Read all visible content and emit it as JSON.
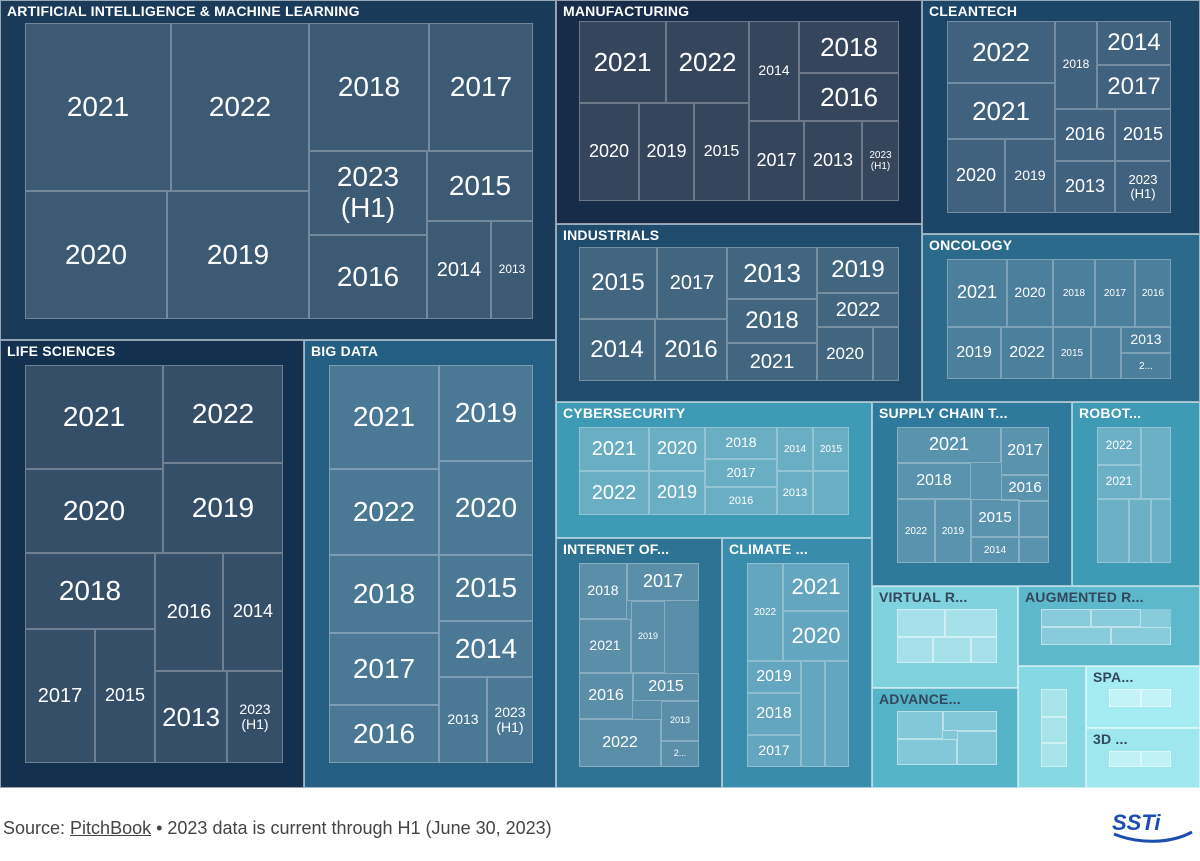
{
  "chart_data": {
    "type": "treemap",
    "categories": [
      {
        "name": "ARTIFICIAL INTELLIGENCE & MACHINE LEARNING",
        "bg": "#1a3a5a",
        "inner": "#3d5a74",
        "cells": [
          {
            "label": "2021"
          },
          {
            "label": "2022"
          },
          {
            "label": "2018"
          },
          {
            "label": "2017"
          },
          {
            "label": "2023 (H1)"
          },
          {
            "label": "2015"
          },
          {
            "label": "2020"
          },
          {
            "label": "2019"
          },
          {
            "label": "2016"
          },
          {
            "label": "2014"
          },
          {
            "label": "2013"
          }
        ]
      },
      {
        "name": "MANUFACTURING",
        "bg": "#162c48",
        "inner": "#35465c",
        "cells": [
          {
            "label": "2021"
          },
          {
            "label": "2022"
          },
          {
            "label": "2014"
          },
          {
            "label": "2018"
          },
          {
            "label": "2016"
          },
          {
            "label": "2020"
          },
          {
            "label": "2019"
          },
          {
            "label": "2015"
          },
          {
            "label": "2017"
          },
          {
            "label": "2013"
          },
          {
            "label": "2023 (H1)"
          }
        ]
      },
      {
        "name": "CLEANTECH",
        "bg": "#1c4668",
        "inner": "#41627e",
        "cells": [
          {
            "label": "2022"
          },
          {
            "label": "2018"
          },
          {
            "label": "2014"
          },
          {
            "label": "2017"
          },
          {
            "label": "2021"
          },
          {
            "label": "2016"
          },
          {
            "label": "2015"
          },
          {
            "label": "2020"
          },
          {
            "label": "2019"
          },
          {
            "label": "2013"
          },
          {
            "label": "2023 (H1)"
          }
        ]
      },
      {
        "name": "INDUSTRIALS",
        "bg": "#1f4b6c",
        "inner": "#42667f",
        "cells": [
          {
            "label": "2015"
          },
          {
            "label": "2017"
          },
          {
            "label": "2013"
          },
          {
            "label": "2019"
          },
          {
            "label": "2018"
          },
          {
            "label": "2022"
          },
          {
            "label": "2014"
          },
          {
            "label": "2016"
          },
          {
            "label": "2021"
          },
          {
            "label": "2020"
          },
          {
            "label": ""
          }
        ]
      },
      {
        "name": "ONCOLOGY",
        "bg": "#2c6a8c",
        "inner": "#4c7f9c",
        "cells": [
          {
            "label": "2021"
          },
          {
            "label": "2020"
          },
          {
            "label": "2018"
          },
          {
            "label": "2017"
          },
          {
            "label": "2016"
          },
          {
            "label": "2019"
          },
          {
            "label": "2022"
          },
          {
            "label": "2015"
          },
          {
            "label": ""
          },
          {
            "label": "2013"
          },
          {
            "label": "2..."
          }
        ]
      },
      {
        "name": "LIFE SCIENCES",
        "bg": "#14304f",
        "inner": "#364f69",
        "cells": [
          {
            "label": "2021"
          },
          {
            "label": "2022"
          },
          {
            "label": "2020"
          },
          {
            "label": "2019"
          },
          {
            "label": "2018"
          },
          {
            "label": "2016"
          },
          {
            "label": "2014"
          },
          {
            "label": "2017"
          },
          {
            "label": "2015"
          },
          {
            "label": "2013"
          },
          {
            "label": "2023 (H1)"
          }
        ]
      },
      {
        "name": "BIG DATA",
        "bg": "#245e82",
        "inner": "#4a7895",
        "cells": [
          {
            "label": "2021"
          },
          {
            "label": "2019"
          },
          {
            "label": "2022"
          },
          {
            "label": "2020"
          },
          {
            "label": "2018"
          },
          {
            "label": "2015"
          },
          {
            "label": "2017"
          },
          {
            "label": "2014"
          },
          {
            "label": "2016"
          },
          {
            "label": "2013"
          },
          {
            "label": "2023 (H1)"
          }
        ]
      },
      {
        "name": "CYBERSECURITY",
        "bg": "#3f9ab6",
        "inner": "#6aaec4",
        "cells": [
          {
            "label": "2021"
          },
          {
            "label": "2020"
          },
          {
            "label": "2018"
          },
          {
            "label": "2014"
          },
          {
            "label": "2015"
          },
          {
            "label": "2017"
          },
          {
            "label": "2022"
          },
          {
            "label": "2019"
          },
          {
            "label": "2016"
          },
          {
            "label": "2013"
          },
          {
            "label": ""
          }
        ]
      },
      {
        "name": "SUPPLY CHAIN T...",
        "bg": "#2f7a9c",
        "inner": "#5a93ad",
        "cells": [
          {
            "label": "2021"
          },
          {
            "label": "2017"
          },
          {
            "label": "2018"
          },
          {
            "label": "2016"
          },
          {
            "label": "2015"
          },
          {
            "label": "2022"
          },
          {
            "label": "2019"
          },
          {
            "label": "2014"
          },
          {
            "label": ""
          },
          {
            "label": ""
          }
        ]
      },
      {
        "name": "ROBOT...",
        "bg": "#3f9ab6",
        "inner": "#6cb0c6",
        "cells": [
          {
            "label": "2022"
          },
          {
            "label": "2021"
          },
          {
            "label": ""
          },
          {
            "label": ""
          },
          {
            "label": ""
          },
          {
            "label": ""
          }
        ]
      },
      {
        "name": "INTERNET OF...",
        "bg": "#2f7394",
        "inner": "#5a8ea9",
        "cells": [
          {
            "label": "2018"
          },
          {
            "label": "2017"
          },
          {
            "label": "2021"
          },
          {
            "label": "2019"
          },
          {
            "label": "2016"
          },
          {
            "label": "2015"
          },
          {
            "label": "2022"
          },
          {
            "label": "2013"
          },
          {
            "label": "2..."
          }
        ]
      },
      {
        "name": "CLIMATE ...",
        "bg": "#3a8cac",
        "inner": "#64a5bf",
        "cells": [
          {
            "label": "2022"
          },
          {
            "label": "2021"
          },
          {
            "label": "2020"
          },
          {
            "label": "2019"
          },
          {
            "label": "2018"
          },
          {
            "label": "2017"
          },
          {
            "label": ""
          },
          {
            "label": ""
          }
        ]
      },
      {
        "name": "VIRTUAL R...",
        "bg": "#7fd2de",
        "inner": "#a6e1e9",
        "light": true,
        "cells": [
          {
            "label": ""
          },
          {
            "label": ""
          },
          {
            "label": ""
          },
          {
            "label": ""
          },
          {
            "label": ""
          }
        ]
      },
      {
        "name": "AUGMENTED R...",
        "bg": "#5db8cc",
        "inner": "#88cbda",
        "light": true,
        "cells": [
          {
            "label": ""
          },
          {
            "label": ""
          },
          {
            "label": ""
          },
          {
            "label": ""
          }
        ]
      },
      {
        "name": "ADVANCE...",
        "bg": "#55b4c8",
        "inner": "#82c8d8",
        "light": true,
        "cells": [
          {
            "label": ""
          },
          {
            "label": ""
          },
          {
            "label": ""
          },
          {
            "label": ""
          }
        ]
      },
      {
        "name": "",
        "bg": "#86d8e3",
        "inner": "#a8e3ea",
        "light": true,
        "cells": [
          {
            "label": ""
          },
          {
            "label": ""
          },
          {
            "label": ""
          }
        ]
      },
      {
        "name": "SPA...",
        "bg": "#a4ecf2",
        "inner": "#c4f3f7",
        "light": true,
        "cells": [
          {
            "label": ""
          },
          {
            "label": ""
          }
        ]
      },
      {
        "name": "3D ...",
        "bg": "#9ee7ee",
        "inner": "#c0f1f5",
        "light": true,
        "cells": [
          {
            "label": ""
          },
          {
            "label": ""
          }
        ]
      }
    ]
  },
  "footer": {
    "source_prefix": "Source: ",
    "source_link": "PitchBook",
    "source_suffix": " • 2023 data is current through H1 (June 30, 2023)",
    "logo_text": "SSTi"
  }
}
